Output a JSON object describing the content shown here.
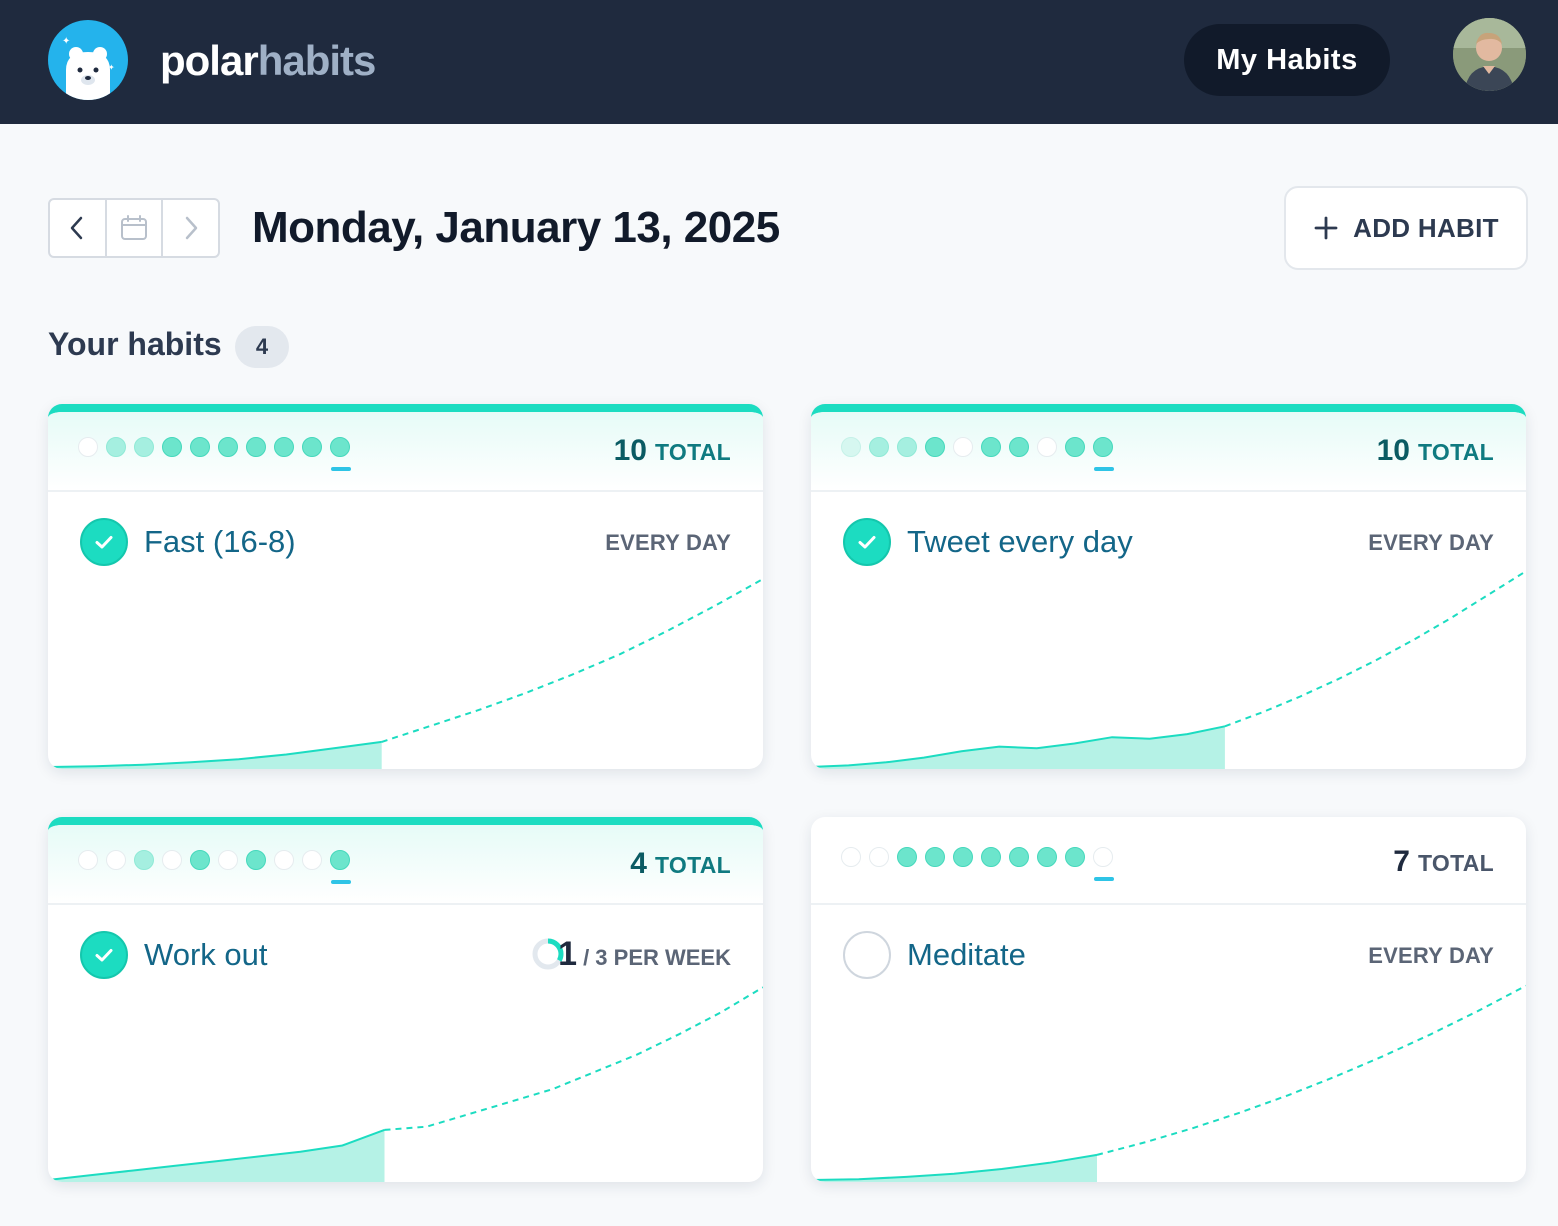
{
  "app": {
    "brand_part1": "polar",
    "brand_part2": "habits",
    "nav_button": "My Habits"
  },
  "date_nav": {
    "prev_icon": "chevron-left-icon",
    "calendar_icon": "calendar-icon",
    "next_icon": "chevron-right-icon",
    "current_date": "Monday, January 13, 2025"
  },
  "add_habit": {
    "label": "ADD HABIT",
    "icon": "plus-icon"
  },
  "habits_section": {
    "title": "Your habits",
    "count": "4"
  },
  "colors": {
    "accent": "#1cdcc1",
    "header_bg": "#1f2a3e",
    "habit_name": "#136688"
  },
  "habits": [
    {
      "name": "Fast (16-8)",
      "completed_today": true,
      "total": "10",
      "total_label": "TOTAL",
      "frequency": "EVERY DAY",
      "history_levels": [
        0,
        2,
        2,
        3,
        3,
        3,
        3,
        3,
        3,
        3
      ],
      "trend": {
        "actual": [
          0,
          0.05,
          0.15,
          0.3,
          0.5,
          0.8,
          1.2,
          1.6
        ],
        "projected": [
          1.6,
          2.6,
          3.6,
          4.7,
          5.9,
          7.2,
          8.7,
          10.3,
          12
        ]
      }
    },
    {
      "name": "Tweet every day",
      "completed_today": true,
      "total": "10",
      "total_label": "TOTAL",
      "frequency": "EVERY DAY",
      "history_levels": [
        1,
        2,
        2,
        3,
        0,
        3,
        3,
        0,
        3,
        3
      ],
      "trend": {
        "actual": [
          0,
          0.1,
          0.3,
          0.6,
          1.0,
          1.3,
          1.2,
          1.5,
          1.9,
          1.8,
          2.1,
          2.6
        ],
        "projected": [
          2.6,
          3.5,
          4.5,
          5.6,
          6.8,
          8.1,
          9.5,
          11,
          12.5
        ]
      }
    },
    {
      "name": "Work out",
      "completed_today": true,
      "total": "4",
      "total_label": "TOTAL",
      "frequency_count": "1",
      "frequency": "/ 3 PER WEEK",
      "weekly_progress": 0.33,
      "history_levels": [
        0,
        0,
        2,
        0,
        3,
        0,
        3,
        0,
        0,
        3
      ],
      "trend": {
        "actual": [
          0,
          0.3,
          0.6,
          0.9,
          1.2,
          1.5,
          1.8,
          2.2,
          3.2
        ],
        "projected": [
          3.2,
          3.4,
          4.2,
          5.0,
          5.8,
          6.9,
          8.0,
          9.3,
          10.7,
          12.3
        ]
      }
    },
    {
      "name": "Meditate",
      "completed_today": false,
      "total": "7",
      "total_label": "TOTAL",
      "frequency": "EVERY DAY",
      "history_levels": [
        0,
        0,
        3,
        3,
        3,
        3,
        3,
        3,
        3,
        0
      ],
      "trend": {
        "actual": [
          0,
          0.05,
          0.2,
          0.4,
          0.7,
          1.1,
          1.6
        ],
        "projected": [
          1.6,
          2.4,
          3.3,
          4.3,
          5.4,
          6.6,
          7.9,
          9.3,
          10.8,
          12.4
        ]
      }
    }
  ]
}
